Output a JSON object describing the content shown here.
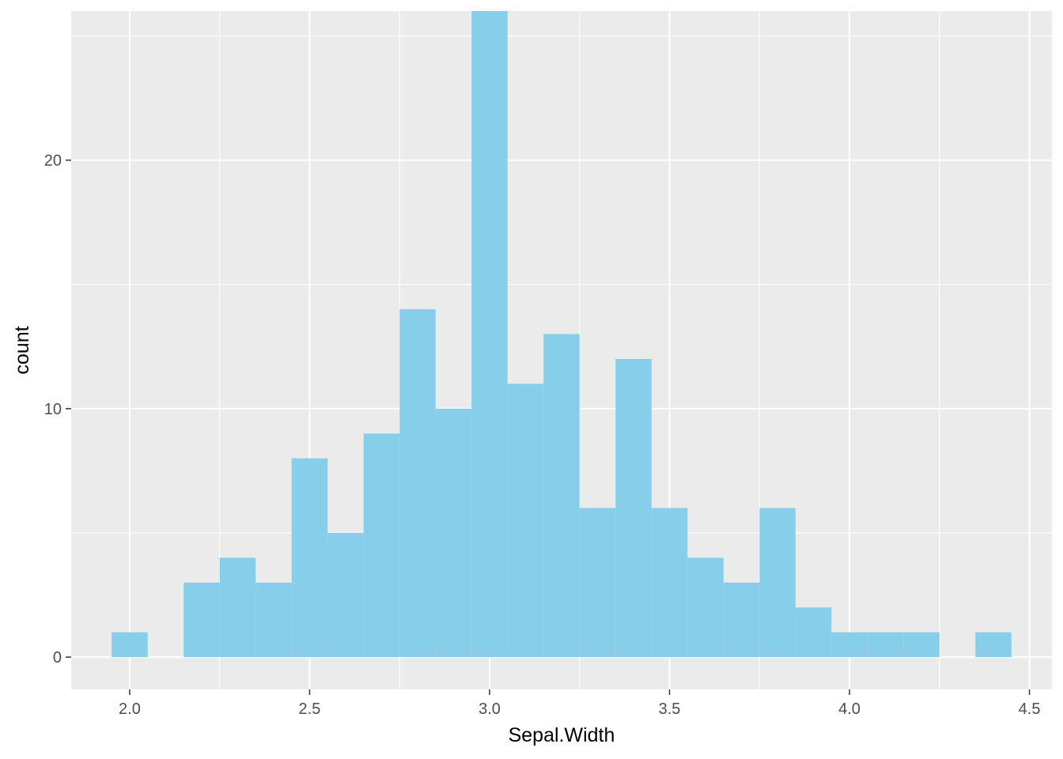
{
  "chart_data": {
    "type": "bar",
    "subtype": "histogram",
    "title": "",
    "xlabel": "Sepal.Width",
    "ylabel": "count",
    "xlim": [
      1.8375,
      4.5625
    ],
    "ylim": [
      -1.3,
      26.0
    ],
    "x_ticks": [
      2.0,
      2.5,
      3.0,
      3.5,
      4.0,
      4.5
    ],
    "x_tick_labels": [
      "2.0",
      "2.5",
      "3.0",
      "3.5",
      "4.0",
      "4.5"
    ],
    "y_ticks": [
      0,
      10,
      20
    ],
    "y_tick_labels": [
      "0",
      "10",
      "20"
    ],
    "bin_width": 0.1,
    "bin_centers": [
      2.0,
      2.1,
      2.2,
      2.3,
      2.4,
      2.5,
      2.6,
      2.7,
      2.8,
      2.9,
      3.0,
      3.1,
      3.2,
      3.3,
      3.4,
      3.5,
      3.6,
      3.7,
      3.8,
      3.9,
      4.0,
      4.1,
      4.2,
      4.3,
      4.4
    ],
    "values": [
      1,
      0,
      3,
      4,
      3,
      8,
      5,
      9,
      14,
      10,
      26,
      11,
      13,
      6,
      12,
      6,
      4,
      3,
      6,
      2,
      1,
      1,
      1,
      0,
      1
    ],
    "fill_color": "#87CEEB",
    "panel_background": "#EBEBEB",
    "grid_color": "#FFFFFF",
    "grid": true
  }
}
